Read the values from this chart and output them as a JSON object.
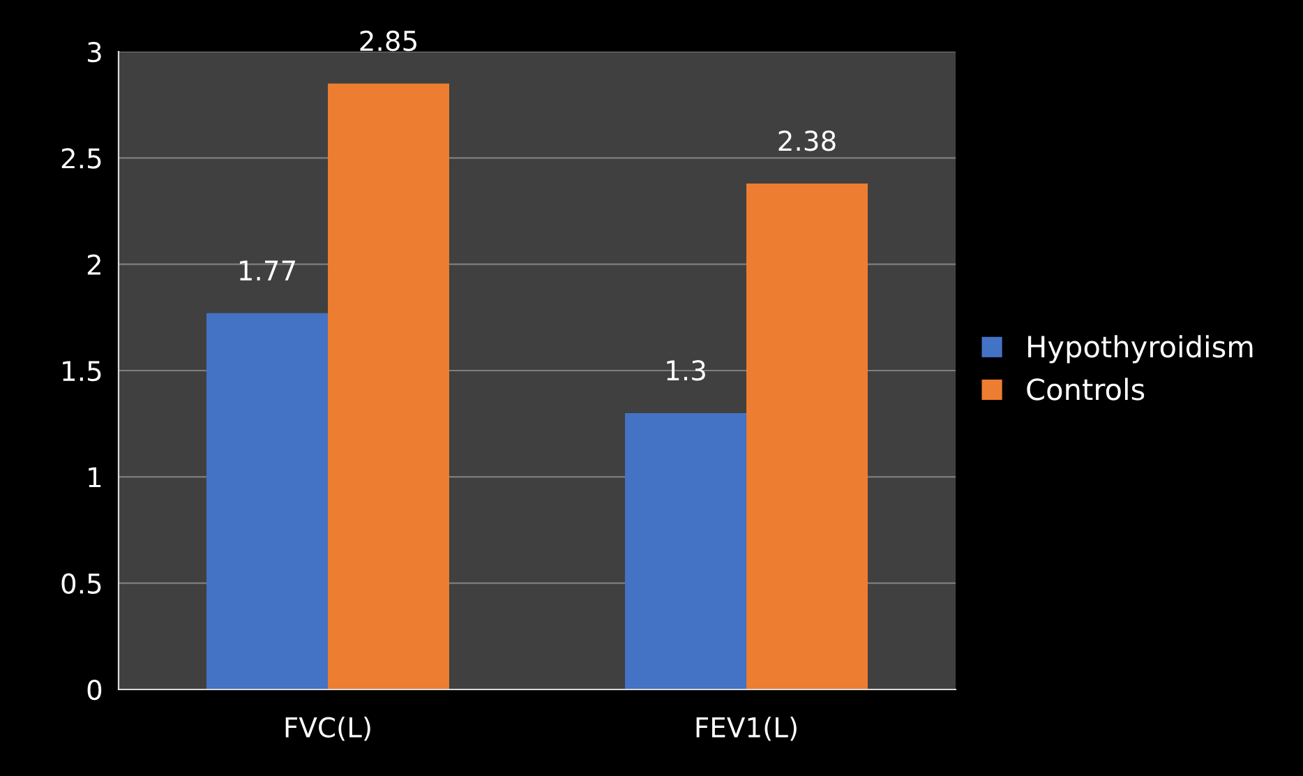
{
  "chart_data": {
    "type": "bar",
    "categories": [
      "FVC(L)",
      "FEV1(L)"
    ],
    "series": [
      {
        "name": "Hypothyroidism",
        "color": "#4472c4",
        "values": [
          1.77,
          1.3
        ]
      },
      {
        "name": "Controls",
        "color": "#ed7d31",
        "values": [
          2.85,
          2.38
        ]
      }
    ],
    "ylim": [
      0,
      3
    ],
    "yticks": [
      0,
      0.5,
      1,
      1.5,
      2,
      2.5,
      3
    ],
    "grid": "y",
    "legend": "right",
    "data_labels": true
  }
}
